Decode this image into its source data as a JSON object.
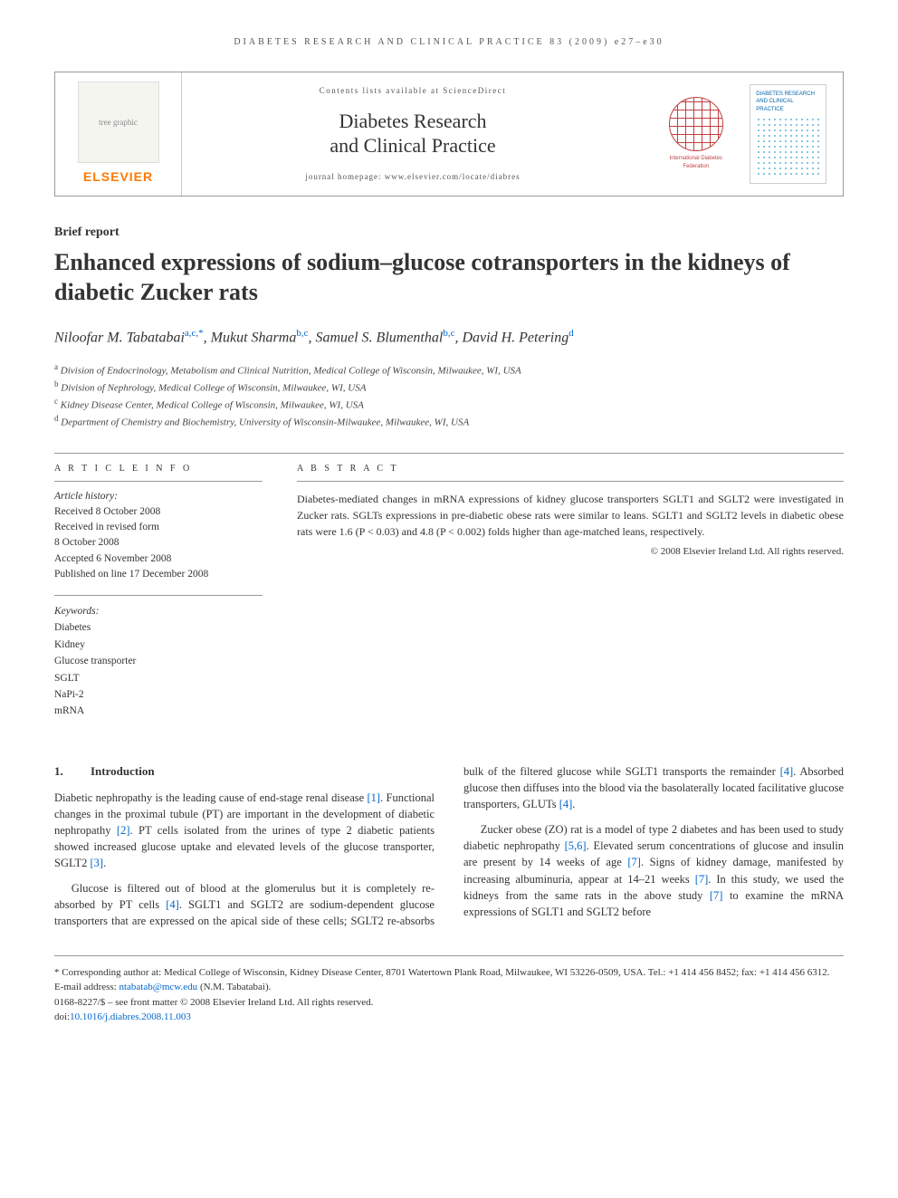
{
  "runningHeader": "DIABETES RESEARCH AND CLINICAL PRACTICE 83 (2009) e27–e30",
  "masthead": {
    "publisher": "ELSEVIER",
    "scienceDirect": "Contents lists available at ScienceDirect",
    "journalName1": "Diabetes Research",
    "journalName2": "and Clinical Practice",
    "homepage": "journal homepage: www.elsevier.com/locate/diabres",
    "idfText": "International Diabetes Federation",
    "coverTitle": "DIABETES RESEARCH AND CLINICAL PRACTICE"
  },
  "article": {
    "type": "Brief report",
    "title": "Enhanced expressions of sodium–glucose cotransporters in the kidneys of diabetic Zucker rats",
    "authors": [
      {
        "name": "Niloofar M. Tabatabai",
        "aff": "a,c,*"
      },
      {
        "name": "Mukut Sharma",
        "aff": "b,c"
      },
      {
        "name": "Samuel S. Blumenthal",
        "aff": "b,c"
      },
      {
        "name": "David H. Petering",
        "aff": "d"
      }
    ],
    "affiliations": [
      {
        "key": "a",
        "text": "Division of Endocrinology, Metabolism and Clinical Nutrition, Medical College of Wisconsin, Milwaukee, WI, USA"
      },
      {
        "key": "b",
        "text": "Division of Nephrology, Medical College of Wisconsin, Milwaukee, WI, USA"
      },
      {
        "key": "c",
        "text": "Kidney Disease Center, Medical College of Wisconsin, Milwaukee, WI, USA"
      },
      {
        "key": "d",
        "text": "Department of Chemistry and Biochemistry, University of Wisconsin-Milwaukee, Milwaukee, WI, USA"
      }
    ]
  },
  "info": {
    "heading": "A R T I C L E   I N F O",
    "historyLabel": "Article history:",
    "history": [
      "Received 8 October 2008",
      "Received in revised form",
      "8 October 2008",
      "Accepted 6 November 2008",
      "Published on line 17 December 2008"
    ],
    "keywordsLabel": "Keywords:",
    "keywords": [
      "Diabetes",
      "Kidney",
      "Glucose transporter",
      "SGLT",
      "NaPi-2",
      "mRNA"
    ]
  },
  "abstract": {
    "heading": "A B S T R A C T",
    "text": "Diabetes-mediated changes in mRNA expressions of kidney glucose transporters SGLT1 and SGLT2 were investigated in Zucker rats. SGLTs expressions in pre-diabetic obese rats were similar to leans. SGLT1 and SGLT2 levels in diabetic obese rats were 1.6 (P < 0.03) and 4.8 (P < 0.002) folds higher than age-matched leans, respectively.",
    "copyright": "© 2008 Elsevier Ireland Ltd. All rights reserved."
  },
  "sections": {
    "introHeadingNum": "1.",
    "introHeading": "Introduction",
    "p1a": "Diabetic nephropathy is the leading cause of end-stage renal disease ",
    "r1": "[1]",
    "p1b": ". Functional changes in the proximal tubule (PT) are important in the development of diabetic nephropathy ",
    "r2": "[2]",
    "p1c": ". PT cells isolated from the urines of type 2 diabetic patients showed increased glucose uptake and elevated levels of the glucose transporter, SGLT2 ",
    "r3": "[3]",
    "p1d": ".",
    "p2a": "Glucose is filtered out of blood at the glomerulus but it is completely re-absorbed by PT cells ",
    "r4": "[4]",
    "p2b": ". SGLT1 and SGLT2 are sodium-dependent glucose transporters that are expressed on the apical side of these cells; SGLT2 re-absorbs bulk of the filtered glucose while SGLT1 transports the remainder ",
    "r4b": "[4]",
    "p2c": ". Absorbed glucose then diffuses into the blood via the basolaterally located facilitative glucose transporters, GLUTs ",
    "r4c": "[4]",
    "p2d": ".",
    "p3a": "Zucker obese (ZO) rat is a model of type 2 diabetes and has been used to study diabetic nephropathy ",
    "r56": "[5,6]",
    "p3b": ". Elevated serum concentrations of glucose and insulin are present by 14 weeks of age ",
    "r7": "[7]",
    "p3c": ". Signs of kidney damage, manifested by increasing albuminuria, appear at 14–21 weeks ",
    "r7b": "[7]",
    "p3d": ". In this study, we used the kidneys from the same rats in the above study ",
    "r7c": "[7]",
    "p3e": " to examine the mRNA expressions of SGLT1 and SGLT2 before"
  },
  "footnotes": {
    "corr": "* Corresponding author at: Medical College of Wisconsin, Kidney Disease Center, 8701 Watertown Plank Road, Milwaukee, WI 53226-0509, USA. Tel.: +1 414 456 8452; fax: +1 414 456 6312.",
    "emailLabel": "E-mail address: ",
    "email": "ntabatab@mcw.edu",
    "emailSuffix": " (N.M. Tabatabai).",
    "issn": "0168-8227/$ – see front matter © 2008 Elsevier Ireland Ltd. All rights reserved.",
    "doiLabel": "doi:",
    "doi": "10.1016/j.diabres.2008.11.003"
  },
  "colors": {
    "link": "#0066cc",
    "elsevierOrange": "#ff7a00",
    "idfRed": "#c04040",
    "coverBlue": "#5ab4d4",
    "rule": "#999999",
    "text": "#333333"
  },
  "typography": {
    "bodySizePt": 12.5,
    "titleSizePt": 26,
    "authorSizePt": 16,
    "headingLetterSpacingPx": 3
  }
}
